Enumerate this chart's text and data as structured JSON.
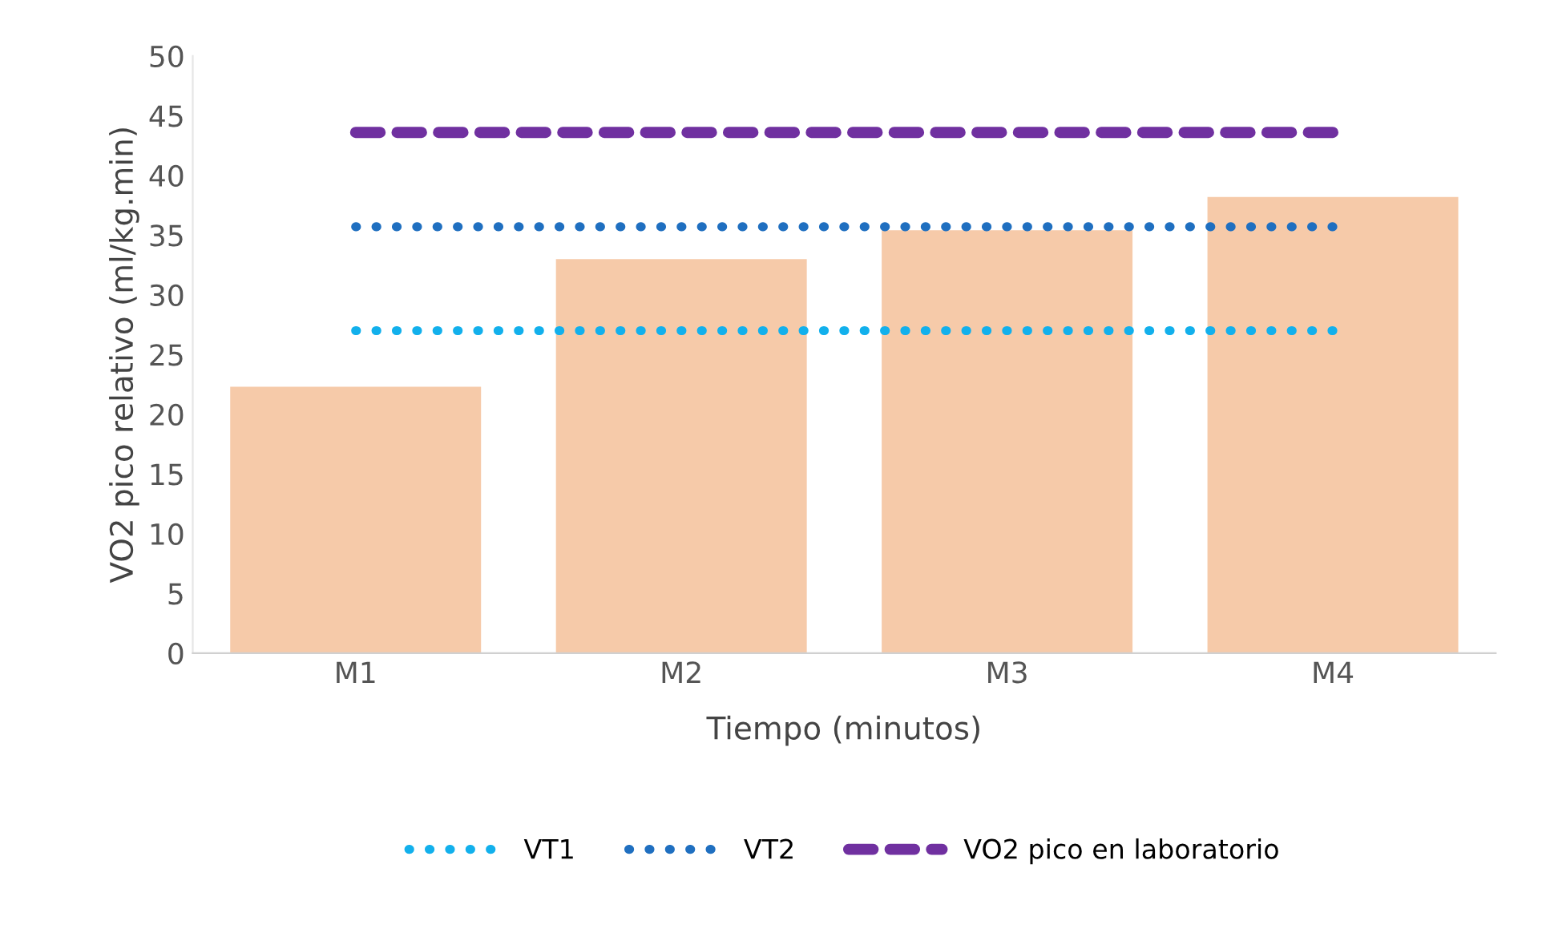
{
  "chart_data": {
    "type": "bar",
    "xlabel": "Tiempo (minutos)",
    "ylabel": "VO2 pico relativo (ml/kg.min)",
    "categories": [
      "M1",
      "M2",
      "M3",
      "M4"
    ],
    "series": [
      {
        "color": "#f6caa9",
        "values": [
          22.3,
          33.0,
          35.4,
          38.2
        ]
      },
      {
        "type": "line",
        "name": "VT1",
        "color": "#12b0ec",
        "line_style": "dotted",
        "values": [
          27.0,
          27.0,
          27.0,
          27.0
        ]
      },
      {
        "type": "line",
        "name": "VT2",
        "color": "#1f6fc0",
        "line_style": "dotted",
        "values": [
          35.7,
          35.7,
          35.7,
          35.7
        ]
      },
      {
        "type": "line",
        "name": "VO2 pico en laboratorio",
        "color": "#7030a0",
        "line_style": "dashed",
        "values": [
          43.6,
          43.6,
          43.6,
          43.6
        ]
      }
    ],
    "ylim": [
      0,
      50
    ],
    "yticks": [
      0,
      5,
      10,
      15,
      20,
      25,
      30,
      35,
      40,
      45,
      50
    ],
    "grid": false,
    "legend": "bottom"
  }
}
